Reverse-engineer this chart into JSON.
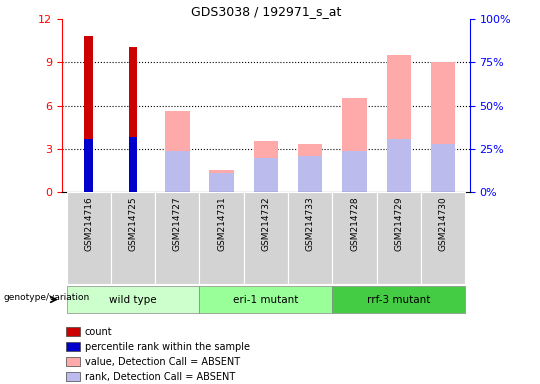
{
  "title": "GDS3038 / 192971_s_at",
  "samples": [
    "GSM214716",
    "GSM214725",
    "GSM214727",
    "GSM214731",
    "GSM214732",
    "GSM214733",
    "GSM214728",
    "GSM214729",
    "GSM214730"
  ],
  "groups": [
    {
      "label": "wild type",
      "color": "#ccffcc",
      "indices": [
        0,
        1,
        2
      ]
    },
    {
      "label": "eri-1 mutant",
      "color": "#99ff99",
      "indices": [
        3,
        4,
        5
      ]
    },
    {
      "label": "rrf-3 mutant",
      "color": "#44cc44",
      "indices": [
        6,
        7,
        8
      ]
    }
  ],
  "count_values": [
    10.8,
    10.1,
    0,
    0,
    0,
    0,
    0,
    0,
    0
  ],
  "percentile_rank_values": [
    3.7,
    3.8,
    0,
    0,
    0,
    0,
    0,
    0,
    0
  ],
  "value_absent": [
    0,
    0,
    5.65,
    1.55,
    3.55,
    3.3,
    6.5,
    9.5,
    9.0
  ],
  "rank_absent": [
    0,
    0,
    2.85,
    1.3,
    2.35,
    2.5,
    2.85,
    3.65,
    3.3
  ],
  "ylim_left": [
    0,
    12
  ],
  "left_ticks": [
    0,
    3,
    6,
    9,
    12
  ],
  "right_ticks": [
    0,
    25,
    50,
    75,
    100
  ],
  "bar_width": 0.55,
  "color_count": "#cc0000",
  "color_percentile": "#0000cc",
  "color_value_absent": "#ffaaaa",
  "color_rank_absent": "#bbbbee",
  "bg_samples": "#d3d3d3",
  "genotype_label": "genotype/variation",
  "legend_items": [
    {
      "color": "#cc0000",
      "label": "count"
    },
    {
      "color": "#0000cc",
      "label": "percentile rank within the sample"
    },
    {
      "color": "#ffaaaa",
      "label": "value, Detection Call = ABSENT"
    },
    {
      "color": "#bbbbee",
      "label": "rank, Detection Call = ABSENT"
    }
  ]
}
